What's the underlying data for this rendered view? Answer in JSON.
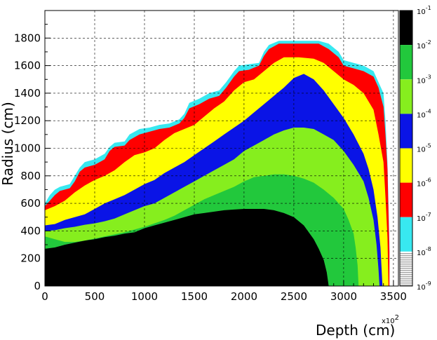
{
  "chart_data": {
    "type": "heatmap",
    "title": "",
    "xlabel": "Depth (cm)",
    "xlabel_multiplier": "x10",
    "xlabel_multiplier_exp": "2",
    "ylabel": "Radius (cm)",
    "xlim": [
      0,
      3550
    ],
    "ylim": [
      0,
      2000
    ],
    "x_ticks": [
      "0",
      "500",
      "1000",
      "1500",
      "2000",
      "2500",
      "3000",
      "3500"
    ],
    "y_ticks": [
      "0",
      "200",
      "400",
      "600",
      "800",
      "1000",
      "1200",
      "1400",
      "1600",
      "1800"
    ],
    "grid": true,
    "colorbar": {
      "base": "10",
      "exponents": [
        "-1",
        "-2",
        "-3",
        "-4",
        "-5",
        "-6",
        "-7",
        "-8",
        "-9"
      ],
      "colors": [
        "#000000",
        "#22c83c",
        "#86ee1e",
        "#0a14e6",
        "#ffff00",
        "#ff0000",
        "#38e8f0",
        "#ffffff"
      ]
    },
    "contours": [
      {
        "level": "10^-9",
        "color": "#38e8f0",
        "r": [
          [
            0,
            600
          ],
          [
            50,
            660
          ],
          [
            100,
            700
          ],
          [
            150,
            720
          ],
          [
            250,
            740
          ],
          [
            300,
            800
          ],
          [
            350,
            860
          ],
          [
            400,
            900
          ],
          [
            500,
            920
          ],
          [
            600,
            960
          ],
          [
            650,
            1010
          ],
          [
            700,
            1040
          ],
          [
            800,
            1050
          ],
          [
            850,
            1100
          ],
          [
            950,
            1140
          ],
          [
            1050,
            1150
          ],
          [
            1150,
            1170
          ],
          [
            1250,
            1180
          ],
          [
            1350,
            1210
          ],
          [
            1400,
            1250
          ],
          [
            1450,
            1330
          ],
          [
            1550,
            1360
          ],
          [
            1650,
            1400
          ],
          [
            1750,
            1420
          ],
          [
            1820,
            1480
          ],
          [
            1900,
            1560
          ],
          [
            1950,
            1600
          ],
          [
            2050,
            1610
          ],
          [
            2150,
            1620
          ],
          [
            2200,
            1700
          ],
          [
            2250,
            1750
          ],
          [
            2350,
            1780
          ],
          [
            2550,
            1780
          ],
          [
            2750,
            1780
          ],
          [
            2850,
            1760
          ],
          [
            2950,
            1700
          ],
          [
            3000,
            1640
          ],
          [
            3100,
            1620
          ],
          [
            3200,
            1600
          ],
          [
            3300,
            1560
          ],
          [
            3350,
            1480
          ],
          [
            3400,
            1400
          ],
          [
            3420,
            1200
          ],
          [
            3440,
            900
          ],
          [
            3450,
            600
          ],
          [
            3460,
            300
          ],
          [
            3460,
            0
          ]
        ]
      },
      {
        "level": "10^-8",
        "color": "#ff0000",
        "r": [
          [
            0,
            580
          ],
          [
            50,
            620
          ],
          [
            100,
            660
          ],
          [
            150,
            690
          ],
          [
            250,
            710
          ],
          [
            300,
            760
          ],
          [
            350,
            830
          ],
          [
            400,
            860
          ],
          [
            500,
            880
          ],
          [
            600,
            920
          ],
          [
            650,
            980
          ],
          [
            700,
            1010
          ],
          [
            800,
            1020
          ],
          [
            850,
            1060
          ],
          [
            950,
            1100
          ],
          [
            1050,
            1120
          ],
          [
            1150,
            1140
          ],
          [
            1250,
            1150
          ],
          [
            1350,
            1180
          ],
          [
            1400,
            1220
          ],
          [
            1450,
            1290
          ],
          [
            1550,
            1320
          ],
          [
            1650,
            1360
          ],
          [
            1750,
            1380
          ],
          [
            1820,
            1440
          ],
          [
            1900,
            1520
          ],
          [
            1950,
            1560
          ],
          [
            2050,
            1570
          ],
          [
            2150,
            1600
          ],
          [
            2200,
            1670
          ],
          [
            2250,
            1720
          ],
          [
            2350,
            1760
          ],
          [
            2550,
            1760
          ],
          [
            2750,
            1760
          ],
          [
            2850,
            1720
          ],
          [
            2950,
            1660
          ],
          [
            3000,
            1600
          ],
          [
            3100,
            1580
          ],
          [
            3200,
            1560
          ],
          [
            3300,
            1520
          ],
          [
            3350,
            1440
          ],
          [
            3400,
            1300
          ],
          [
            3420,
            1100
          ],
          [
            3440,
            850
          ],
          [
            3450,
            550
          ],
          [
            3460,
            250
          ],
          [
            3460,
            0
          ]
        ]
      },
      {
        "level": "10^-7",
        "color": "#ffff00",
        "r": [
          [
            0,
            550
          ],
          [
            100,
            580
          ],
          [
            200,
            620
          ],
          [
            300,
            680
          ],
          [
            400,
            730
          ],
          [
            500,
            770
          ],
          [
            600,
            800
          ],
          [
            700,
            840
          ],
          [
            800,
            900
          ],
          [
            900,
            950
          ],
          [
            1000,
            970
          ],
          [
            1100,
            1000
          ],
          [
            1200,
            1060
          ],
          [
            1300,
            1110
          ],
          [
            1400,
            1140
          ],
          [
            1500,
            1170
          ],
          [
            1600,
            1230
          ],
          [
            1700,
            1290
          ],
          [
            1800,
            1340
          ],
          [
            1900,
            1420
          ],
          [
            2000,
            1480
          ],
          [
            2100,
            1500
          ],
          [
            2200,
            1560
          ],
          [
            2300,
            1620
          ],
          [
            2400,
            1660
          ],
          [
            2550,
            1660
          ],
          [
            2700,
            1650
          ],
          [
            2800,
            1620
          ],
          [
            2900,
            1560
          ],
          [
            3000,
            1500
          ],
          [
            3100,
            1460
          ],
          [
            3200,
            1400
          ],
          [
            3300,
            1280
          ],
          [
            3350,
            1100
          ],
          [
            3400,
            900
          ],
          [
            3420,
            650
          ],
          [
            3440,
            350
          ],
          [
            3450,
            0
          ]
        ]
      },
      {
        "level": "10^-6",
        "color": "#0a14e6",
        "r": [
          [
            0,
            440
          ],
          [
            100,
            450
          ],
          [
            200,
            480
          ],
          [
            300,
            500
          ],
          [
            400,
            520
          ],
          [
            500,
            560
          ],
          [
            600,
            600
          ],
          [
            700,
            630
          ],
          [
            800,
            660
          ],
          [
            900,
            700
          ],
          [
            1000,
            740
          ],
          [
            1100,
            770
          ],
          [
            1200,
            820
          ],
          [
            1300,
            860
          ],
          [
            1400,
            900
          ],
          [
            1500,
            950
          ],
          [
            1600,
            1000
          ],
          [
            1700,
            1050
          ],
          [
            1800,
            1100
          ],
          [
            1900,
            1150
          ],
          [
            2000,
            1200
          ],
          [
            2100,
            1260
          ],
          [
            2200,
            1320
          ],
          [
            2300,
            1380
          ],
          [
            2400,
            1440
          ],
          [
            2500,
            1510
          ],
          [
            2600,
            1540
          ],
          [
            2700,
            1500
          ],
          [
            2800,
            1420
          ],
          [
            2900,
            1320
          ],
          [
            3000,
            1220
          ],
          [
            3100,
            1100
          ],
          [
            3200,
            960
          ],
          [
            3250,
            850
          ],
          [
            3300,
            700
          ],
          [
            3340,
            500
          ],
          [
            3370,
            280
          ],
          [
            3390,
            0
          ]
        ]
      },
      {
        "level": "10^-5",
        "color": "#86ee1e",
        "r": [
          [
            0,
            400
          ],
          [
            100,
            405
          ],
          [
            200,
            420
          ],
          [
            300,
            430
          ],
          [
            400,
            445
          ],
          [
            500,
            455
          ],
          [
            600,
            470
          ],
          [
            700,
            490
          ],
          [
            800,
            520
          ],
          [
            900,
            550
          ],
          [
            1000,
            580
          ],
          [
            1100,
            600
          ],
          [
            1200,
            640
          ],
          [
            1300,
            680
          ],
          [
            1400,
            720
          ],
          [
            1500,
            760
          ],
          [
            1600,
            800
          ],
          [
            1700,
            840
          ],
          [
            1800,
            880
          ],
          [
            1900,
            920
          ],
          [
            2000,
            980
          ],
          [
            2100,
            1020
          ],
          [
            2200,
            1060
          ],
          [
            2300,
            1100
          ],
          [
            2400,
            1130
          ],
          [
            2500,
            1150
          ],
          [
            2600,
            1150
          ],
          [
            2700,
            1140
          ],
          [
            2800,
            1100
          ],
          [
            2900,
            1060
          ],
          [
            3000,
            980
          ],
          [
            3100,
            880
          ],
          [
            3200,
            760
          ],
          [
            3250,
            640
          ],
          [
            3300,
            480
          ],
          [
            3330,
            300
          ],
          [
            3350,
            120
          ],
          [
            3360,
            0
          ]
        ]
      },
      {
        "level": "10^-4",
        "color": "#22c83c",
        "r": [
          [
            0,
            360
          ],
          [
            100,
            340
          ],
          [
            200,
            320
          ],
          [
            300,
            320
          ],
          [
            400,
            330
          ],
          [
            500,
            345
          ],
          [
            600,
            360
          ],
          [
            700,
            375
          ],
          [
            800,
            390
          ],
          [
            900,
            410
          ],
          [
            1000,
            430
          ],
          [
            1100,
            455
          ],
          [
            1200,
            480
          ],
          [
            1300,
            510
          ],
          [
            1400,
            550
          ],
          [
            1500,
            590
          ],
          [
            1600,
            630
          ],
          [
            1700,
            660
          ],
          [
            1800,
            690
          ],
          [
            1900,
            720
          ],
          [
            2000,
            760
          ],
          [
            2100,
            790
          ],
          [
            2200,
            800
          ],
          [
            2300,
            810
          ],
          [
            2400,
            810
          ],
          [
            2500,
            800
          ],
          [
            2600,
            780
          ],
          [
            2700,
            750
          ],
          [
            2800,
            700
          ],
          [
            2900,
            640
          ],
          [
            3000,
            560
          ],
          [
            3050,
            480
          ],
          [
            3100,
            380
          ],
          [
            3120,
            280
          ],
          [
            3140,
            150
          ],
          [
            3150,
            0
          ]
        ]
      },
      {
        "level": "10^-3",
        "color": "#000000",
        "r": [
          [
            0,
            270
          ],
          [
            100,
            280
          ],
          [
            200,
            300
          ],
          [
            300,
            315
          ],
          [
            400,
            330
          ],
          [
            500,
            340
          ],
          [
            600,
            355
          ],
          [
            700,
            365
          ],
          [
            800,
            380
          ],
          [
            900,
            390
          ],
          [
            1000,
            420
          ],
          [
            1100,
            440
          ],
          [
            1200,
            460
          ],
          [
            1300,
            480
          ],
          [
            1400,
            500
          ],
          [
            1500,
            520
          ],
          [
            1600,
            530
          ],
          [
            1700,
            540
          ],
          [
            1800,
            550
          ],
          [
            1900,
            555
          ],
          [
            2000,
            560
          ],
          [
            2100,
            560
          ],
          [
            2200,
            560
          ],
          [
            2300,
            550
          ],
          [
            2400,
            530
          ],
          [
            2500,
            500
          ],
          [
            2550,
            470
          ],
          [
            2600,
            440
          ],
          [
            2650,
            390
          ],
          [
            2700,
            340
          ],
          [
            2750,
            270
          ],
          [
            2800,
            190
          ],
          [
            2830,
            100
          ],
          [
            2850,
            0
          ]
        ]
      }
    ]
  }
}
